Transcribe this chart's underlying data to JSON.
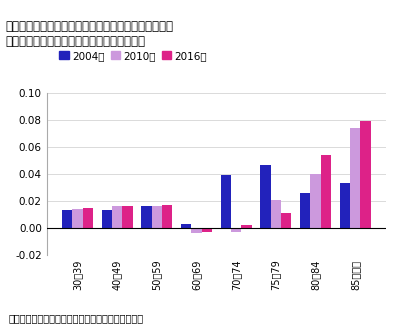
{
  "title_line1": "図表４　健康上の問題で日常生活に影響がある割合の",
  "title_line2": "　男女差の推移（女性の割合－男性の割合）",
  "categories": [
    "30～39",
    "40～49",
    "50～59",
    "60～69",
    "70～74",
    "75～79",
    "80～84",
    "85歳以上"
  ],
  "series_2004": [
    0.013,
    0.013,
    0.016,
    0.003,
    0.039,
    0.047,
    0.026,
    0.033
  ],
  "series_2010": [
    0.014,
    0.016,
    0.016,
    -0.004,
    -0.003,
    0.021,
    0.04,
    0.074
  ],
  "series_2016": [
    0.015,
    0.016,
    0.017,
    -0.003,
    0.002,
    0.011,
    0.054,
    0.079
  ],
  "color_2004": "#2222bb",
  "color_2010": "#cc99dd",
  "color_2016": "#dd2288",
  "label_2004": "2004年",
  "label_2010": "2010年",
  "label_2016": "2016年",
  "ylim_min": -0.02,
  "ylim_max": 0.1,
  "yticks": [
    -0.02,
    0.0,
    0.02,
    0.04,
    0.06,
    0.08,
    0.1
  ],
  "footnote": "（資料）厕生労働省「国民生活基礎調査」（各年）",
  "bar_width": 0.26
}
